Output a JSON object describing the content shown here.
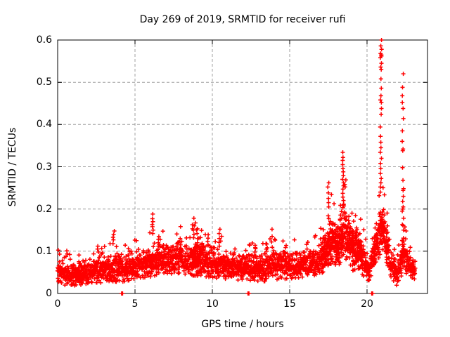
{
  "chart_data": {
    "type": "scatter",
    "title": "Day 269 of 2019, SRMTID for receiver rufi",
    "xlabel": "GPS time / hours",
    "ylabel": "SRMTID / TECUs",
    "xlim": [
      0,
      24
    ],
    "ylim": [
      0,
      0.6
    ],
    "xticks": [
      {
        "value": 0,
        "label": "0"
      },
      {
        "value": 5,
        "label": "5"
      },
      {
        "value": 10,
        "label": "10"
      },
      {
        "value": 15,
        "label": "15"
      },
      {
        "value": 20,
        "label": "20"
      }
    ],
    "yticks": [
      {
        "value": 0.0,
        "label": "0"
      },
      {
        "value": 0.1,
        "label": "0.1"
      },
      {
        "value": 0.2,
        "label": "0.2"
      },
      {
        "value": 0.3,
        "label": "0.3"
      },
      {
        "value": 0.4,
        "label": "0.4"
      },
      {
        "value": 0.5,
        "label": "0.5"
      },
      {
        "value": 0.6,
        "label": "0.6"
      }
    ],
    "grid": {
      "on": true,
      "color": "#a0a0a0",
      "dash": "4 3"
    },
    "frame_color": "#000000",
    "marker": {
      "shape": "plus",
      "color": "#ff0000",
      "half_size": 3,
      "stroke_width": 1.5
    },
    "data_start_hour": 0.0,
    "data_end_hour": 23.12,
    "samples_per_hour": 115,
    "band_profile": [
      [
        0.0,
        0.058,
        0.026
      ],
      [
        0.4,
        0.048,
        0.024
      ],
      [
        0.9,
        0.042,
        0.022
      ],
      [
        1.5,
        0.047,
        0.024
      ],
      [
        2.1,
        0.056,
        0.026
      ],
      [
        2.7,
        0.058,
        0.028
      ],
      [
        3.3,
        0.052,
        0.026
      ],
      [
        3.7,
        0.062,
        0.03
      ],
      [
        4.2,
        0.058,
        0.026
      ],
      [
        4.7,
        0.062,
        0.026
      ],
      [
        5.2,
        0.068,
        0.028
      ],
      [
        5.7,
        0.073,
        0.03
      ],
      [
        6.2,
        0.08,
        0.034
      ],
      [
        6.7,
        0.083,
        0.032
      ],
      [
        7.2,
        0.077,
        0.029
      ],
      [
        7.8,
        0.084,
        0.032
      ],
      [
        8.4,
        0.079,
        0.032
      ],
      [
        8.9,
        0.084,
        0.036
      ],
      [
        9.3,
        0.08,
        0.034
      ],
      [
        9.8,
        0.076,
        0.032
      ],
      [
        10.3,
        0.071,
        0.03
      ],
      [
        10.9,
        0.067,
        0.028
      ],
      [
        11.5,
        0.061,
        0.026
      ],
      [
        12.1,
        0.064,
        0.026
      ],
      [
        12.7,
        0.059,
        0.026
      ],
      [
        13.3,
        0.061,
        0.028
      ],
      [
        13.9,
        0.067,
        0.03
      ],
      [
        14.5,
        0.067,
        0.028
      ],
      [
        15.1,
        0.064,
        0.026
      ],
      [
        15.7,
        0.067,
        0.026
      ],
      [
        16.3,
        0.069,
        0.026
      ],
      [
        16.9,
        0.079,
        0.03
      ],
      [
        17.4,
        0.102,
        0.04
      ],
      [
        17.7,
        0.12,
        0.048
      ],
      [
        18.1,
        0.112,
        0.042
      ],
      [
        18.5,
        0.148,
        0.055
      ],
      [
        18.8,
        0.135,
        0.05
      ],
      [
        19.1,
        0.103,
        0.042
      ],
      [
        19.4,
        0.108,
        0.042
      ],
      [
        19.8,
        0.077,
        0.032
      ],
      [
        20.1,
        0.051,
        0.022
      ],
      [
        20.4,
        0.088,
        0.032
      ],
      [
        20.7,
        0.128,
        0.042
      ],
      [
        21.0,
        0.16,
        0.048
      ],
      [
        21.25,
        0.118,
        0.038
      ],
      [
        21.55,
        0.072,
        0.028
      ],
      [
        21.9,
        0.044,
        0.022
      ],
      [
        22.15,
        0.068,
        0.028
      ],
      [
        22.35,
        0.1,
        0.038
      ],
      [
        22.6,
        0.072,
        0.024
      ],
      [
        22.9,
        0.058,
        0.02
      ],
      [
        23.12,
        0.055,
        0.018
      ]
    ],
    "spike_columns": [
      {
        "x": 2.6,
        "ys": [
          0.098,
          0.105,
          0.112
        ]
      },
      {
        "x": 3.62,
        "ys": [
          0.118,
          0.127,
          0.133,
          0.14,
          0.148
        ]
      },
      {
        "x": 6.15,
        "ys": [
          0.15,
          0.158,
          0.163,
          0.17,
          0.177,
          0.188
        ]
      },
      {
        "x": 6.55,
        "ys": [
          0.112,
          0.12,
          0.128,
          0.135
        ]
      },
      {
        "x": 7.9,
        "ys": [
          0.115,
          0.122,
          0.13
        ]
      },
      {
        "x": 8.8,
        "ys": [
          0.132,
          0.14,
          0.15,
          0.16,
          0.178
        ]
      },
      {
        "x": 9.05,
        "ys": [
          0.112,
          0.12,
          0.13,
          0.142,
          0.153
        ]
      },
      {
        "x": 9.7,
        "ys": [
          0.115,
          0.123,
          0.131,
          0.139
        ]
      },
      {
        "x": 10.45,
        "ys": [
          0.112,
          0.121,
          0.13,
          0.142,
          0.152
        ]
      },
      {
        "x": 12.78,
        "ys": [
          0.098,
          0.106,
          0.114
        ]
      },
      {
        "x": 13.55,
        "ys": [
          0.1,
          0.108,
          0.117
        ]
      },
      {
        "x": 13.85,
        "ys": [
          0.122,
          0.135,
          0.152
        ]
      },
      {
        "x": 17.5,
        "ys": [
          0.205,
          0.215,
          0.225,
          0.238,
          0.252,
          0.262
        ]
      },
      {
        "x": 18.45,
        "ys": [
          0.21,
          0.22,
          0.228,
          0.237,
          0.247,
          0.255,
          0.262,
          0.27,
          0.279,
          0.288,
          0.296,
          0.305,
          0.315,
          0.322,
          0.334
        ]
      },
      {
        "x": 20.9,
        "ys": [
          0.24,
          0.252,
          0.262,
          0.272,
          0.284,
          0.296,
          0.308,
          0.32,
          0.334,
          0.345,
          0.358,
          0.372,
          0.394,
          0.424,
          0.438,
          0.452,
          0.458,
          0.468,
          0.486,
          0.508,
          0.53,
          0.536,
          0.545,
          0.558,
          0.562,
          0.565,
          0.568,
          0.578,
          0.586,
          0.6
        ]
      },
      {
        "x": 22.32,
        "ys": [
          0.15,
          0.163,
          0.178,
          0.195,
          0.2,
          0.205,
          0.218,
          0.23,
          0.244,
          0.248,
          0.268,
          0.298,
          0.338,
          0.342,
          0.36,
          0.385,
          0.414,
          0.438,
          0.452,
          0.468,
          0.488,
          0.52
        ]
      }
    ],
    "zero_value_points_x": [
      4.13,
      4.2,
      12.3,
      12.37,
      20.3,
      20.37
    ]
  }
}
